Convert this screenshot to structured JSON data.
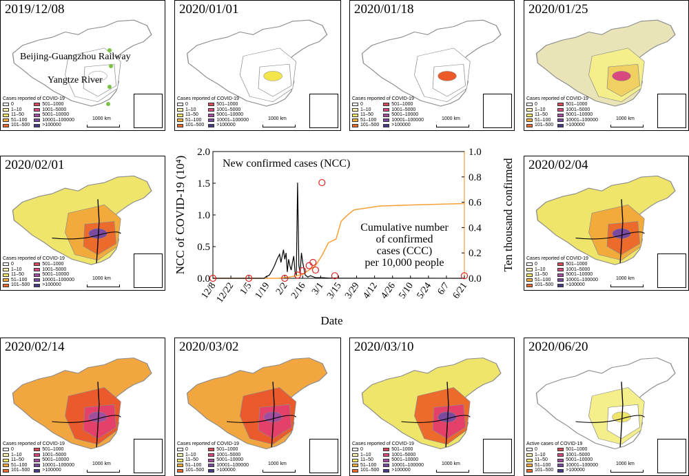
{
  "panels": [
    {
      "date": "2019/12/08",
      "legend_title": "Cases reported of COVID-19",
      "scale": "1000 km"
    },
    {
      "date": "2020/01/01",
      "legend_title": "Cases reported of COVID-19",
      "scale": "1000 km"
    },
    {
      "date": "2020/01/18",
      "legend_title": "Cases reported of COVID-19",
      "scale": "1000 km"
    },
    {
      "date": "2020/01/25",
      "legend_title": "Cases reported of COVID-19",
      "scale": "1000 km"
    },
    {
      "date": "2020/02/01",
      "legend_title": "Cases reported of COVID-19",
      "scale": "1000 km"
    },
    {
      "date": "2020/02/04",
      "legend_title": "Cases reported of COVID-19",
      "scale": "1000 km"
    },
    {
      "date": "2020/02/14",
      "legend_title": "Cases reported of COVID-19",
      "scale": "1000 km"
    },
    {
      "date": "2020/03/02",
      "legend_title": "Cases reported of COVID-19",
      "scale": "1000 km"
    },
    {
      "date": "2020/03/10",
      "legend_title": "Cases reported of COVID-19",
      "scale": "1000 km"
    },
    {
      "date": "2020/06/20",
      "legend_title": "Active cases of COVID-19",
      "scale": "1000 km"
    }
  ],
  "annotations": {
    "railway": "Beijing-Guangzhou Railway",
    "river": "Yangtze River"
  },
  "legend": {
    "left": [
      {
        "label": "0",
        "color": "#ffffff"
      },
      {
        "label": "1–10",
        "color": "#f7f1b0"
      },
      {
        "label": "11–50",
        "color": "#efe56a"
      },
      {
        "label": "51–100",
        "color": "#f2ab3b"
      },
      {
        "label": "101–500",
        "color": "#ec6a2c"
      }
    ],
    "right": [
      {
        "label": "501–1000",
        "color": "#d94a5a"
      },
      {
        "label": "1001–5000",
        "color": "#d9487e"
      },
      {
        "label": "5001–10000",
        "color": "#a24d9e"
      },
      {
        "label": "10001–100000",
        "color": "#7a4a9e"
      },
      {
        "label": ">100000",
        "color": "#4a3a8a"
      }
    ]
  },
  "colors": {
    "land_outline": "#8c8c8c",
    "railway": "#7ac143",
    "river": "#000000",
    "ncc_line": "#000000",
    "ccc_line": "#f5a035",
    "markers": "#e02020",
    "map_fill_low": "#eae6b0",
    "map_fill_mid": "#f0a640",
    "map_fill_high": "#ea5a2c",
    "map_fill_peak": "#a84aa4"
  },
  "chart_data": {
    "type": "line",
    "x_tick_labels": [
      "12/8",
      "12/22",
      "1/5",
      "1/19",
      "2/2",
      "2/16",
      "3/1",
      "3/15",
      "3/29",
      "4/12",
      "4/26",
      "5/10",
      "5/24",
      "6/7",
      "6/21"
    ],
    "xlabel": "Date",
    "ylabel_left": "NCC of COVID-19 (10⁴)",
    "ylabel_right": "Ten thousand confirmed",
    "ylim_left": [
      0,
      2.0
    ],
    "ylim_right": [
      0,
      1.0
    ],
    "yticks_left": [
      "0.0",
      "0.5",
      "1.0",
      "1.5",
      "2.0"
    ],
    "yticks_right": [
      "0.0",
      "0.2",
      "0.4",
      "0.6",
      "0.8",
      "1.0"
    ],
    "annotation_ncc": "New confirmed cases (NCC)",
    "annotation_ccc": [
      "Cumulative number",
      "of confirmed",
      "cases (CCC)",
      "per 10,000 people"
    ],
    "series": [
      {
        "name": "New confirmed cases (NCC)",
        "axis": "left",
        "x": [
          0,
          40,
          41,
          44,
          46,
          48,
          50,
          52,
          53,
          55,
          56,
          57,
          58,
          59,
          60,
          61,
          62,
          63,
          64,
          65,
          66,
          67,
          68,
          69,
          70,
          72,
          74,
          76,
          80,
          85,
          90,
          100,
          130,
          160,
          196
        ],
        "y": [
          0,
          0,
          0.02,
          0.05,
          0.12,
          0.2,
          0.3,
          0.38,
          0.25,
          0.45,
          0.3,
          0.4,
          0.1,
          0.3,
          0.2,
          0.13,
          0.25,
          0.35,
          0.1,
          0.05,
          1.51,
          0.2,
          0.08,
          0.4,
          0.25,
          0.05,
          0.02,
          0.04,
          0.01,
          0.01,
          0.005,
          0.002,
          0.001,
          0.001,
          0
        ]
      },
      {
        "name": "Cumulative number of confirmed cases (CCC) per 10,000 people",
        "axis": "right",
        "x": [
          0,
          50,
          60,
          70,
          80,
          85,
          90,
          96,
          100,
          105,
          110,
          130,
          160,
          196
        ],
        "y": [
          0,
          0,
          0.01,
          0.03,
          0.1,
          0.18,
          0.28,
          0.31,
          0.45,
          0.5,
          0.54,
          0.57,
          0.58,
          0.59
        ]
      }
    ],
    "markers": {
      "x": [
        0,
        28,
        56,
        66,
        70,
        75,
        78,
        80,
        85,
        95,
        196
      ],
      "y": [
        0,
        0,
        0,
        0.05,
        0.12,
        0.2,
        0.25,
        0.13,
        1.51,
        0.04,
        0.04
      ]
    }
  }
}
